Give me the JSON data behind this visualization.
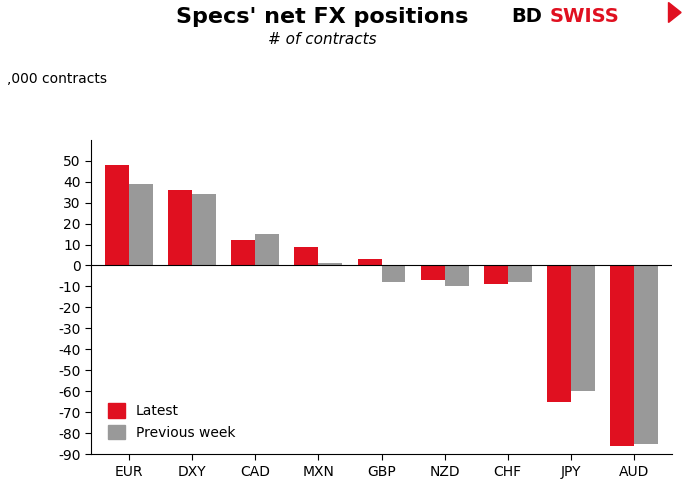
{
  "title": "Specs' net FX positions",
  "subtitle": "# of contracts",
  "ylabel": ",000 contracts",
  "categories": [
    "EUR",
    "DXY",
    "CAD",
    "MXN",
    "GBP",
    "NZD",
    "CHF",
    "JPY",
    "AUD"
  ],
  "latest": [
    48,
    36,
    12,
    9,
    3,
    -7,
    -9,
    -65,
    -86
  ],
  "previous_week": [
    39,
    34,
    15,
    1,
    -8,
    -10,
    -8,
    -60,
    -85
  ],
  "latest_color": "#e01020",
  "prev_color": "#999999",
  "ylim": [
    -90,
    60
  ],
  "yticks": [
    -90,
    -80,
    -70,
    -60,
    -50,
    -40,
    -30,
    -20,
    -10,
    0,
    10,
    20,
    30,
    40,
    50
  ],
  "bar_width": 0.38,
  "legend_labels": [
    "Latest",
    "Previous week"
  ],
  "background_color": "#ffffff",
  "title_fontsize": 16,
  "subtitle_fontsize": 11,
  "tick_fontsize": 10,
  "legend_fontsize": 10,
  "ylabel_fontsize": 10
}
